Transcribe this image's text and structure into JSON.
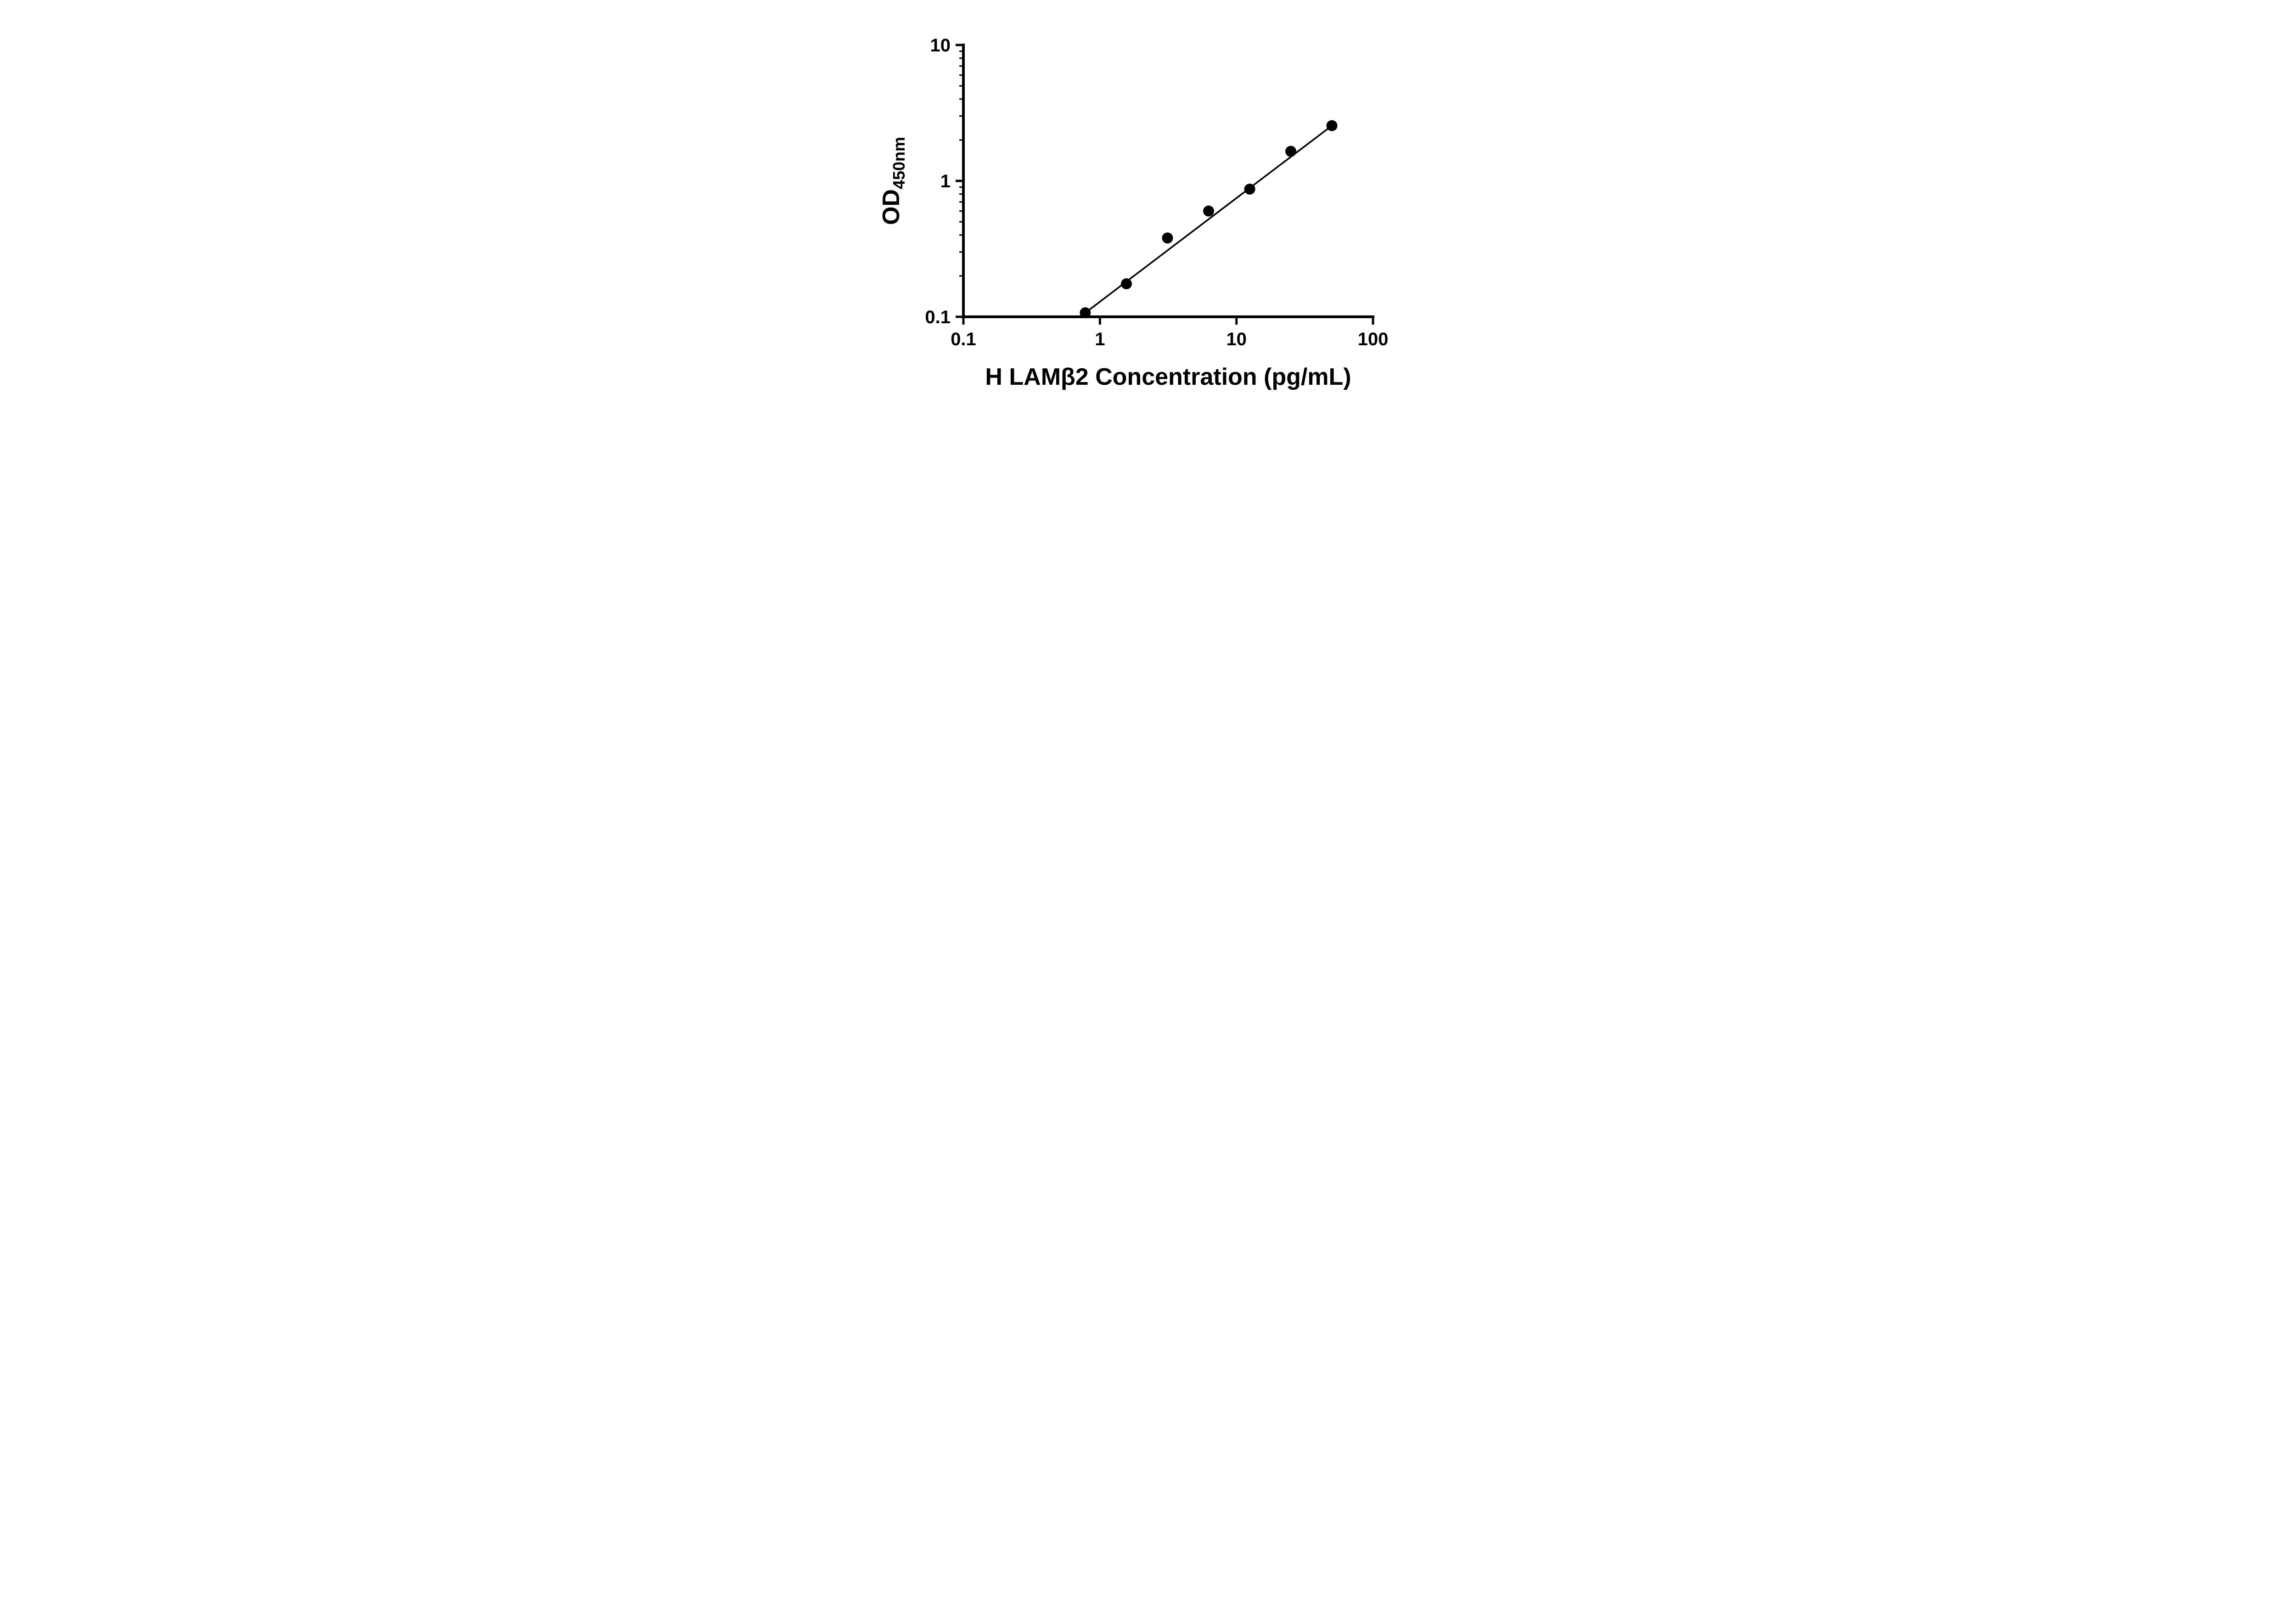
{
  "chart_data": {
    "type": "scatter",
    "title": "",
    "xlabel": "H LAMβ2 Concentration (pg/mL)",
    "ylabel_main": "OD",
    "ylabel_sub": "450nm",
    "x_scale": "log",
    "y_scale": "log",
    "xlim": [
      0.1,
      100
    ],
    "ylim": [
      0.1,
      10
    ],
    "grid": false,
    "legend": "none",
    "background_color": "#ffffff",
    "axis_color": "#000000",
    "x_ticks": [
      {
        "value": 0.1,
        "label": "0.1"
      },
      {
        "value": 1,
        "label": "1"
      },
      {
        "value": 10,
        "label": "10"
      },
      {
        "value": 100,
        "label": "100"
      }
    ],
    "y_ticks": [
      {
        "value": 0.1,
        "label": "0.1"
      },
      {
        "value": 1,
        "label": "1"
      },
      {
        "value": 10,
        "label": "10"
      }
    ],
    "y_minor_ticks": true,
    "x_minor_ticks": false,
    "series": [
      {
        "marker": "circle",
        "marker_color": "#000000",
        "marker_radius": 12,
        "line": "straight fit between end points",
        "line_color": "#000000",
        "points": [
          {
            "x": 0.781,
            "y": 0.107
          },
          {
            "x": 1.563,
            "y": 0.175
          },
          {
            "x": 3.125,
            "y": 0.38
          },
          {
            "x": 6.25,
            "y": 0.6
          },
          {
            "x": 12.5,
            "y": 0.87
          },
          {
            "x": 25,
            "y": 1.65
          },
          {
            "x": 50,
            "y": 2.55
          }
        ]
      }
    ]
  }
}
